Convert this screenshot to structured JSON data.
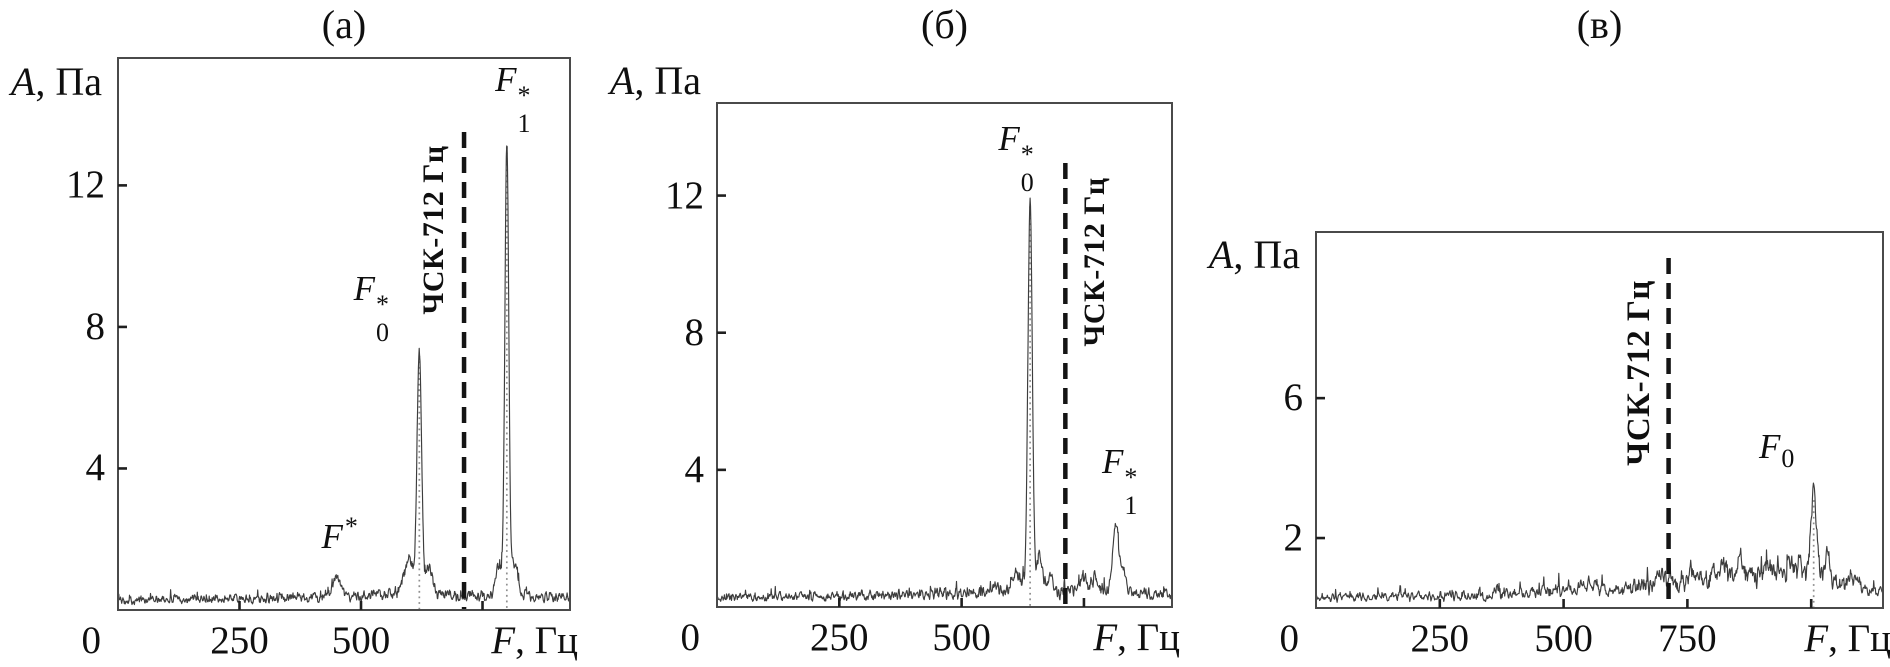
{
  "figure_colors": {
    "background": "#ffffff",
    "box_line": "#4a4a4a",
    "tick_line": "#1f1f1f",
    "trace": "#3d3d3d",
    "ref_dashed_line": "#141414",
    "peak_marker_dotted": "#8f8f8f",
    "text": "#0f0f0f"
  },
  "chart_data": [
    {
      "type": "line",
      "panel": "a",
      "title": "(а)",
      "ylabel": {
        "sym": "A",
        "rest": ", Па"
      },
      "xlabel": {
        "sym": "F",
        "rest": ", Гц"
      },
      "xlim": [
        0,
        930
      ],
      "ylim": [
        0,
        15.6
      ],
      "x_ticks": [
        0,
        250,
        500
      ],
      "x_minor_ticks": [
        750
      ],
      "y_ticks": [
        4,
        8,
        12
      ],
      "grid": false,
      "legend": null,
      "ref_line": {
        "freq": 712,
        "label": "ЧСК-712 Гц",
        "side": "left"
      },
      "peaks": [
        {
          "freq": 450,
          "amp": 0.95,
          "w": 9,
          "label": {
            "base": "F",
            "sup": "*"
          },
          "ldx": 15,
          "ldy": -12
        },
        {
          "freq": 598,
          "amp": 1.35,
          "w": 10
        },
        {
          "freq": 620,
          "amp": 7.3,
          "w": 4.5,
          "label": {
            "base": "F",
            "sub": "0",
            "sup": "*"
          },
          "marker": true,
          "ldx": -36,
          "ldy": 0
        },
        {
          "freq": 640,
          "amp": 1.15,
          "w": 7
        },
        {
          "freq": 783,
          "amp": 1.2,
          "w": 6
        },
        {
          "freq": 800,
          "amp": 13.2,
          "w": 4,
          "label": {
            "base": "F",
            "sub": "1",
            "sup": "*"
          },
          "marker": true,
          "ldx": 18,
          "ldy": 0
        },
        {
          "freq": 816,
          "amp": 1.3,
          "w": 6
        }
      ],
      "noise_profile": [
        [
          0,
          0.32
        ],
        [
          250,
          0.36
        ],
        [
          400,
          0.45
        ],
        [
          470,
          0.4
        ],
        [
          540,
          0.5
        ],
        [
          600,
          0.55
        ],
        [
          660,
          0.5
        ],
        [
          712,
          0.42
        ],
        [
          770,
          0.5
        ],
        [
          820,
          0.45
        ],
        [
          930,
          0.42
        ]
      ]
    },
    {
      "type": "line",
      "panel": "b",
      "title": "(б)",
      "ylabel": {
        "sym": "A",
        "rest": ", Па"
      },
      "xlabel": {
        "sym": "F",
        "rest": ", Гц"
      },
      "xlim": [
        0,
        930
      ],
      "ylim": [
        0,
        14.7
      ],
      "x_ticks": [
        0,
        250,
        500
      ],
      "x_minor_ticks": [
        750
      ],
      "y_ticks": [
        4,
        8,
        12
      ],
      "grid": false,
      "legend": null,
      "ref_line": {
        "freq": 712,
        "label": "ЧСК-712 Гц",
        "side": "right"
      },
      "peaks": [
        {
          "freq": 570,
          "amp": 0.55,
          "w": 10
        },
        {
          "freq": 612,
          "amp": 0.9,
          "w": 8
        },
        {
          "freq": 640,
          "amp": 11.8,
          "w": 4.5,
          "label": {
            "base": "F",
            "sub": "0",
            "sup": "*"
          },
          "marker": true,
          "ldx": -2,
          "ldy": 0
        },
        {
          "freq": 660,
          "amp": 1.4,
          "w": 6
        },
        {
          "freq": 682,
          "amp": 0.9,
          "w": 5
        },
        {
          "freq": 745,
          "amp": 0.75,
          "w": 8
        },
        {
          "freq": 772,
          "amp": 0.85,
          "w": 6
        },
        {
          "freq": 815,
          "amp": 2.4,
          "w": 5.5,
          "label": {
            "base": "F",
            "sub": "1",
            "sup": "*"
          },
          "ldx": 16,
          "ldy": 0
        },
        {
          "freq": 830,
          "amp": 1.1,
          "w": 5
        }
      ],
      "noise_profile": [
        [
          0,
          0.3
        ],
        [
          250,
          0.36
        ],
        [
          420,
          0.42
        ],
        [
          550,
          0.5
        ],
        [
          620,
          0.55
        ],
        [
          700,
          0.5
        ],
        [
          760,
          0.6
        ],
        [
          800,
          0.55
        ],
        [
          870,
          0.45
        ],
        [
          930,
          0.4
        ]
      ]
    },
    {
      "type": "line",
      "panel": "v",
      "title": "(в)",
      "ylabel": {
        "sym": "A",
        "rest": ", Па"
      },
      "xlabel": {
        "sym": "F",
        "rest": ", Гц"
      },
      "xlim": [
        0,
        1145
      ],
      "ylim": [
        0,
        10.75
      ],
      "x_ticks": [
        0,
        250,
        500,
        750
      ],
      "x_minor_ticks": [
        1000
      ],
      "y_ticks": [
        2,
        6
      ],
      "grid": false,
      "legend": null,
      "ref_line": {
        "freq": 712,
        "label": "ЧСК-712 Гц",
        "side": "left"
      },
      "peaks": [
        {
          "freq": 560,
          "amp": 0.55,
          "w": 12
        },
        {
          "freq": 700,
          "amp": 0.95,
          "w": 10
        },
        {
          "freq": 760,
          "amp": 0.95,
          "w": 8
        },
        {
          "freq": 820,
          "amp": 1.15,
          "w": 8
        },
        {
          "freq": 858,
          "amp": 1.25,
          "w": 7
        },
        {
          "freq": 912,
          "amp": 1.05,
          "w": 7
        },
        {
          "freq": 958,
          "amp": 1.15,
          "w": 6
        },
        {
          "freq": 1005,
          "amp": 3.2,
          "w": 6,
          "label": {
            "base": "F",
            "sub": "0"
          },
          "marker": true,
          "ldx": -25,
          "ldy": -10
        },
        {
          "freq": 1032,
          "amp": 1.6,
          "w": 5
        },
        {
          "freq": 1085,
          "amp": 0.85,
          "w": 8
        }
      ],
      "noise_profile": [
        [
          0,
          0.33
        ],
        [
          250,
          0.38
        ],
        [
          450,
          0.48
        ],
        [
          540,
          0.7
        ],
        [
          600,
          0.6
        ],
        [
          660,
          0.7
        ],
        [
          712,
          0.75
        ],
        [
          760,
          0.85
        ],
        [
          800,
          1.0
        ],
        [
          850,
          1.1
        ],
        [
          890,
          1.0
        ],
        [
          930,
          1.15
        ],
        [
          970,
          1.2
        ],
        [
          1000,
          1.1
        ],
        [
          1040,
          0.9
        ],
        [
          1080,
          0.65
        ],
        [
          1145,
          0.5
        ]
      ]
    }
  ]
}
